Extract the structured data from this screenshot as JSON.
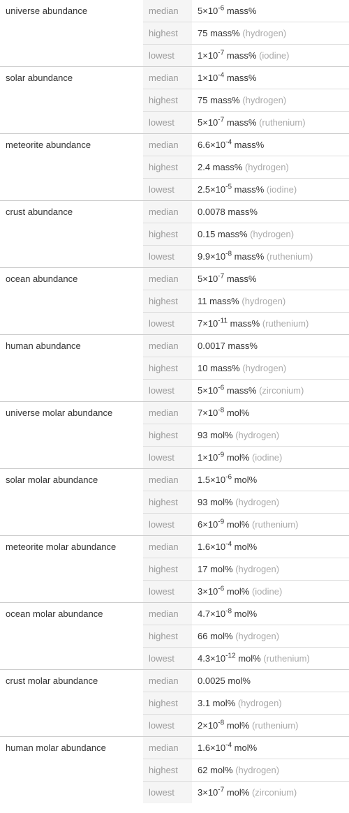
{
  "table": {
    "background_color": "#ffffff",
    "stat_bg_color": "#f5f5f5",
    "stat_text_color": "#999999",
    "text_color": "#333333",
    "element_color": "#aaaaaa",
    "border_color": "#dddddd",
    "group_border_color": "#cccccc",
    "font_size": 13,
    "groups": [
      {
        "label": "universe abundance",
        "rows": [
          {
            "stat": "median",
            "value_html": "5×10<sup>-6</sup> mass%",
            "element": ""
          },
          {
            "stat": "highest",
            "value_html": "75 mass%",
            "element": "(hydrogen)"
          },
          {
            "stat": "lowest",
            "value_html": "1×10<sup>-7</sup> mass%",
            "element": "(iodine)"
          }
        ]
      },
      {
        "label": "solar abundance",
        "rows": [
          {
            "stat": "median",
            "value_html": "1×10<sup>-4</sup> mass%",
            "element": ""
          },
          {
            "stat": "highest",
            "value_html": "75 mass%",
            "element": "(hydrogen)"
          },
          {
            "stat": "lowest",
            "value_html": "5×10<sup>-7</sup> mass%",
            "element": "(ruthenium)"
          }
        ]
      },
      {
        "label": "meteorite abundance",
        "rows": [
          {
            "stat": "median",
            "value_html": "6.6×10<sup>-4</sup> mass%",
            "element": ""
          },
          {
            "stat": "highest",
            "value_html": "2.4 mass%",
            "element": "(hydrogen)"
          },
          {
            "stat": "lowest",
            "value_html": "2.5×10<sup>-5</sup> mass%",
            "element": "(iodine)"
          }
        ]
      },
      {
        "label": "crust abundance",
        "rows": [
          {
            "stat": "median",
            "value_html": "0.0078 mass%",
            "element": ""
          },
          {
            "stat": "highest",
            "value_html": "0.15 mass%",
            "element": "(hydrogen)"
          },
          {
            "stat": "lowest",
            "value_html": "9.9×10<sup>-8</sup> mass%",
            "element": "(ruthenium)"
          }
        ]
      },
      {
        "label": "ocean abundance",
        "rows": [
          {
            "stat": "median",
            "value_html": "5×10<sup>-7</sup> mass%",
            "element": ""
          },
          {
            "stat": "highest",
            "value_html": "11 mass%",
            "element": "(hydrogen)"
          },
          {
            "stat": "lowest",
            "value_html": "7×10<sup>-11</sup> mass%",
            "element": "(ruthenium)"
          }
        ]
      },
      {
        "label": "human abundance",
        "rows": [
          {
            "stat": "median",
            "value_html": "0.0017 mass%",
            "element": ""
          },
          {
            "stat": "highest",
            "value_html": "10 mass%",
            "element": "(hydrogen)"
          },
          {
            "stat": "lowest",
            "value_html": "5×10<sup>-6</sup> mass%",
            "element": "(zirconium)"
          }
        ]
      },
      {
        "label": "universe molar abundance",
        "rows": [
          {
            "stat": "median",
            "value_html": "7×10<sup>-8</sup> mol%",
            "element": ""
          },
          {
            "stat": "highest",
            "value_html": "93 mol%",
            "element": "(hydrogen)"
          },
          {
            "stat": "lowest",
            "value_html": "1×10<sup>-9</sup> mol%",
            "element": "(iodine)"
          }
        ]
      },
      {
        "label": "solar molar abundance",
        "rows": [
          {
            "stat": "median",
            "value_html": "1.5×10<sup>-6</sup> mol%",
            "element": ""
          },
          {
            "stat": "highest",
            "value_html": "93 mol%",
            "element": "(hydrogen)"
          },
          {
            "stat": "lowest",
            "value_html": "6×10<sup>-9</sup> mol%",
            "element": "(ruthenium)"
          }
        ]
      },
      {
        "label": "meteorite molar abundance",
        "rows": [
          {
            "stat": "median",
            "value_html": "1.6×10<sup>-4</sup> mol%",
            "element": ""
          },
          {
            "stat": "highest",
            "value_html": "17 mol%",
            "element": "(hydrogen)"
          },
          {
            "stat": "lowest",
            "value_html": "3×10<sup>-6</sup> mol%",
            "element": "(iodine)"
          }
        ]
      },
      {
        "label": "ocean molar abundance",
        "rows": [
          {
            "stat": "median",
            "value_html": "4.7×10<sup>-8</sup> mol%",
            "element": ""
          },
          {
            "stat": "highest",
            "value_html": "66 mol%",
            "element": "(hydrogen)"
          },
          {
            "stat": "lowest",
            "value_html": "4.3×10<sup>-12</sup> mol%",
            "element": "(ruthenium)"
          }
        ]
      },
      {
        "label": "crust molar abundance",
        "rows": [
          {
            "stat": "median",
            "value_html": "0.0025 mol%",
            "element": ""
          },
          {
            "stat": "highest",
            "value_html": "3.1 mol%",
            "element": "(hydrogen)"
          },
          {
            "stat": "lowest",
            "value_html": "2×10<sup>-8</sup> mol%",
            "element": "(ruthenium)"
          }
        ]
      },
      {
        "label": "human molar abundance",
        "rows": [
          {
            "stat": "median",
            "value_html": "1.6×10<sup>-4</sup> mol%",
            "element": ""
          },
          {
            "stat": "highest",
            "value_html": "62 mol%",
            "element": "(hydrogen)"
          },
          {
            "stat": "lowest",
            "value_html": "3×10<sup>-7</sup> mol%",
            "element": "(zirconium)"
          }
        ]
      }
    ]
  }
}
